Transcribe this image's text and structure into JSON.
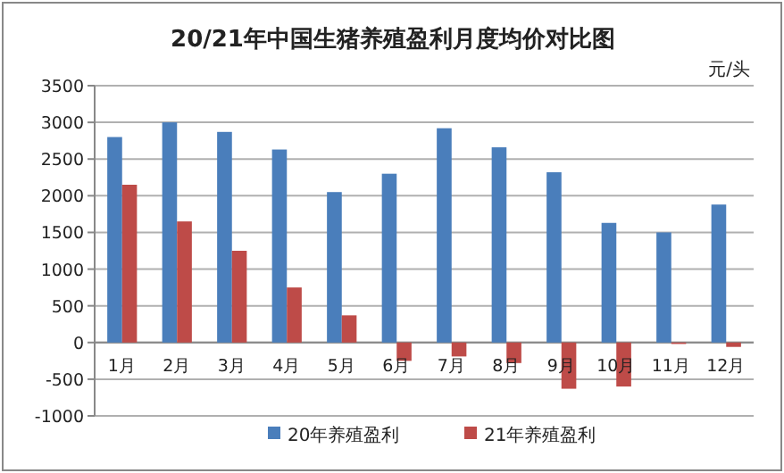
{
  "chart_data": {
    "type": "bar",
    "title": "20/21年中国生猪养殖盈利月度均价对比图",
    "ylabel": "元/头",
    "categories": [
      "1月",
      "2月",
      "3月",
      "4月",
      "5月",
      "6月",
      "7月",
      "8月",
      "9月",
      "10月",
      "11月",
      "12月"
    ],
    "series": [
      {
        "name": "20年养殖盈利",
        "color": "#4a7ebb",
        "values": [
          2800,
          3000,
          2870,
          2630,
          2050,
          2300,
          2920,
          2660,
          2320,
          1630,
          1500,
          1880
        ]
      },
      {
        "name": "21年养殖盈利",
        "color": "#be4b48",
        "values": [
          2150,
          1650,
          1250,
          750,
          370,
          -250,
          -190,
          -280,
          -630,
          -600,
          -20,
          -60
        ]
      }
    ],
    "ylim": [
      -1000,
      3500
    ],
    "yticks": [
      -1000,
      -500,
      0,
      500,
      1000,
      1500,
      2000,
      2500,
      3000,
      3500
    ],
    "grid": "y",
    "legend": "bottom"
  }
}
